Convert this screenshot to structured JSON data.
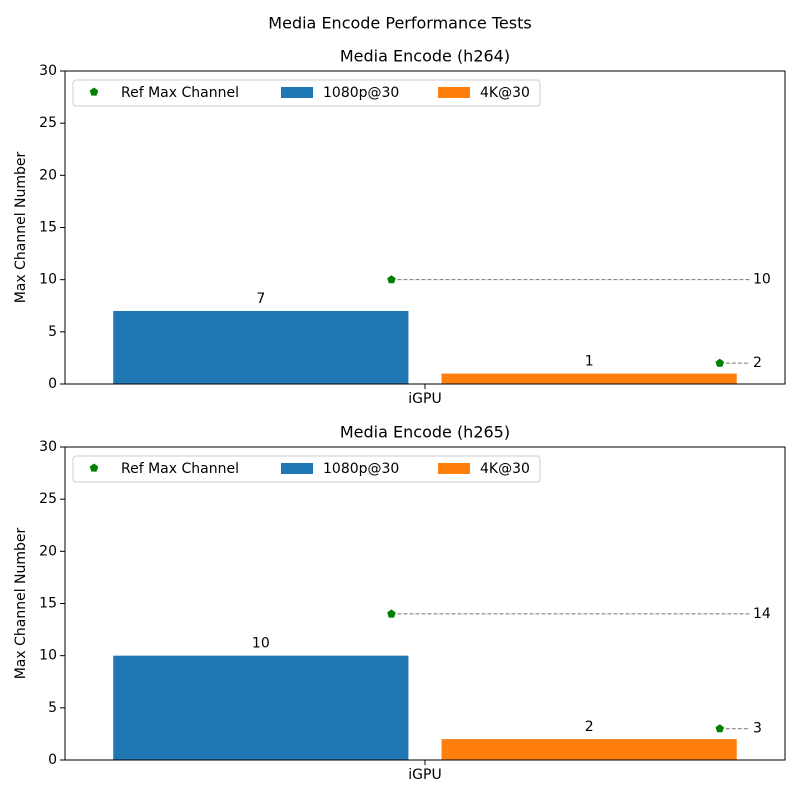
{
  "suptitle": "Media Encode Performance Tests",
  "chart_data": [
    {
      "type": "bar",
      "title": "Media Encode (h264)",
      "ylabel": "Max Channel Number",
      "categories": [
        "iGPU"
      ],
      "series": [
        {
          "name": "1080p@30",
          "color": "#1f77b4",
          "values": [
            7
          ]
        },
        {
          "name": "4K@30",
          "color": "#ff7f0e",
          "values": [
            1
          ]
        }
      ],
      "reference": {
        "name": "Ref Max Channel",
        "color": "#008000",
        "values": [
          10,
          2
        ]
      },
      "ylim": [
        0,
        30
      ],
      "yticks": [
        0,
        5,
        10,
        15,
        20,
        25,
        30
      ],
      "grid": false,
      "legend": "upper left"
    },
    {
      "type": "bar",
      "title": "Media Encode (h265)",
      "ylabel": "Max Channel Number",
      "categories": [
        "iGPU"
      ],
      "series": [
        {
          "name": "1080p@30",
          "color": "#1f77b4",
          "values": [
            10
          ]
        },
        {
          "name": "4K@30",
          "color": "#ff7f0e",
          "values": [
            2
          ]
        }
      ],
      "reference": {
        "name": "Ref Max Channel",
        "color": "#008000",
        "values": [
          14,
          3
        ]
      },
      "ylim": [
        0,
        30
      ],
      "yticks": [
        0,
        5,
        10,
        15,
        20,
        25,
        30
      ],
      "grid": false,
      "legend": "upper left"
    }
  ]
}
